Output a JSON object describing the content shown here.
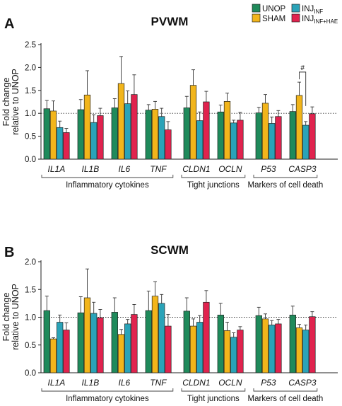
{
  "legend": {
    "entries": [
      {
        "label": "UNOP",
        "sub": "",
        "color": "#1f8a5b"
      },
      {
        "label": "SHAM",
        "sub": "",
        "color": "#f2b51b"
      },
      {
        "label": "INJ",
        "sub": "INF",
        "color": "#2aa3b8"
      },
      {
        "label": "INJ",
        "sub": "INF+HAE",
        "color": "#e0234e"
      }
    ]
  },
  "chart_data": [
    {
      "panel_letter": "A",
      "type": "bar",
      "title": "PVWM",
      "ylabel": "Fold change relative to UNOP",
      "ylabel_lines": [
        "Fold change",
        "relative to UNOP"
      ],
      "ylim": [
        0,
        2.5
      ],
      "yticks": [
        "0.0",
        "0.5",
        "1.0",
        "1.5",
        "2.0",
        "2.5"
      ],
      "reference_line": 1.0,
      "categories": [
        "IL1A",
        "IL1B",
        "IL6",
        "TNF",
        "CLDN1",
        "OCLN",
        "P53",
        "CASP3"
      ],
      "groups": [
        {
          "label": "Inflammatory cytokines",
          "categories": [
            0,
            3
          ]
        },
        {
          "label": "Tight junctions",
          "categories": [
            4,
            5
          ]
        },
        {
          "label": "Markers of cell death",
          "categories": [
            6,
            7
          ]
        }
      ],
      "series": [
        {
          "name": "UNOP",
          "values": [
            1.1,
            1.08,
            1.12,
            1.07,
            1.12,
            1.03,
            1.01,
            1.04
          ],
          "errors": [
            0.18,
            0.22,
            0.2,
            0.12,
            0.25,
            0.15,
            0.12,
            0.15
          ]
        },
        {
          "name": "SHAM",
          "values": [
            1.05,
            1.4,
            1.65,
            1.09,
            1.61,
            1.26,
            1.22,
            1.39
          ],
          "errors": [
            0.22,
            0.53,
            0.59,
            0.17,
            0.34,
            0.18,
            0.19,
            0.29
          ]
        },
        {
          "name": "INJINF",
          "values": [
            0.69,
            0.8,
            1.21,
            0.93,
            0.84,
            0.79,
            0.78,
            0.74
          ],
          "errors": [
            0.14,
            0.17,
            0.28,
            0.18,
            0.19,
            0.06,
            0.14,
            0.08
          ]
        },
        {
          "name": "INJINF+HAE",
          "values": [
            0.58,
            0.95,
            1.41,
            0.64,
            1.25,
            0.85,
            0.93,
            0.99
          ],
          "errors": [
            0.09,
            0.16,
            0.43,
            0.18,
            0.23,
            0.17,
            0.13,
            0.15
          ]
        }
      ],
      "annotation": {
        "text": "#",
        "between": [
          7,
          1,
          2
        ]
      }
    },
    {
      "panel_letter": "B",
      "type": "bar",
      "title": "SCWM",
      "ylabel": "Fold change relative to UNOP",
      "ylabel_lines": [
        "Fold change",
        "relative to UNOP"
      ],
      "ylim": [
        0,
        2.0
      ],
      "yticks": [
        "0.0",
        "0.5",
        "1.0",
        "1.5",
        "2.0"
      ],
      "reference_line": 1.0,
      "categories": [
        "IL1A",
        "IL1B",
        "IL6",
        "TNF",
        "CLDN1",
        "OCLN",
        "P53",
        "CASP3"
      ],
      "groups": [
        {
          "label": "Inflammatory cytokines",
          "categories": [
            0,
            3
          ]
        },
        {
          "label": "Tight junctions",
          "categories": [
            4,
            5
          ]
        },
        {
          "label": "Markers of cell death",
          "categories": [
            6,
            7
          ]
        }
      ],
      "series": [
        {
          "name": "UNOP",
          "values": [
            1.12,
            1.08,
            1.09,
            1.12,
            1.11,
            1.04,
            1.03,
            1.04
          ],
          "errors": [
            0.26,
            0.29,
            0.26,
            0.35,
            0.24,
            0.21,
            0.15,
            0.16
          ]
        },
        {
          "name": "SHAM",
          "values": [
            0.61,
            1.35,
            0.69,
            1.38,
            0.84,
            0.76,
            0.97,
            0.81
          ],
          "errors": [
            0.02,
            0.52,
            0.09,
            0.26,
            0.13,
            0.15,
            0.09,
            0.06
          ]
        },
        {
          "name": "INJINF",
          "values": [
            0.91,
            1.07,
            0.88,
            1.25,
            0.91,
            0.64,
            0.86,
            0.77
          ],
          "errors": [
            0.13,
            0.2,
            0.08,
            0.16,
            0.12,
            0.08,
            0.08,
            0.09
          ]
        },
        {
          "name": "INJINF+HAE",
          "values": [
            0.77,
            0.99,
            1.05,
            0.84,
            1.27,
            0.77,
            0.88,
            1.01
          ],
          "errors": [
            0.13,
            0.15,
            0.18,
            0.21,
            0.21,
            0.06,
            0.08,
            0.09
          ]
        }
      ]
    }
  ]
}
